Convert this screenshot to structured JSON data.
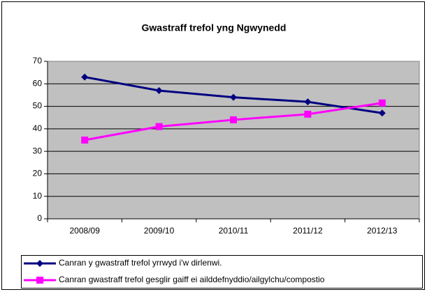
{
  "chart_data": {
    "type": "line",
    "title": "Gwastraff trefol yng Ngwynedd",
    "categories": [
      "2008/09",
      "2009/10",
      "2010/11",
      "2011/12",
      "2012/13"
    ],
    "series": [
      {
        "name": "Canran y gwastraff trefol yrrwyd i'w dirlenwi.",
        "color": "#000080",
        "marker": "diamond",
        "values": [
          63,
          57,
          54,
          52,
          47
        ]
      },
      {
        "name": "Canran gwastraff trefol gesglir gaiff ei ailddefnyddio/ailgylchu/compostio",
        "color": "#ff00ff",
        "marker": "square",
        "values": [
          35,
          41,
          44,
          46.5,
          51.5
        ]
      }
    ],
    "ylim": [
      0,
      70
    ],
    "yticks": [
      0,
      10,
      20,
      30,
      40,
      50,
      60,
      70
    ],
    "grid": true,
    "legend": "bottom"
  }
}
